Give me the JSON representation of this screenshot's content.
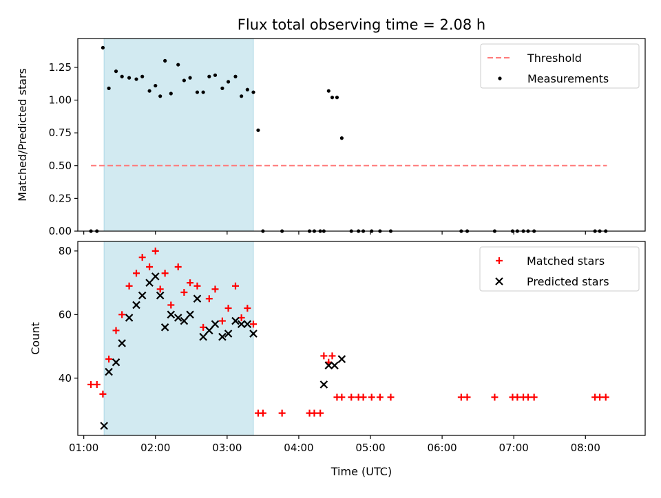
{
  "title": "Flux total observing time = 2.08 h",
  "colors": {
    "threshold": "#ff7a7a",
    "measurement": "#000000",
    "matched": "#ff0000",
    "predicted": "#000000",
    "shade": "#add8e6"
  },
  "chart_data": [
    {
      "type": "scatter",
      "ylabel": "Matched/Predicted stars",
      "xlim": [
        "00:55",
        "08:50"
      ],
      "ylim": [
        0,
        1.47
      ],
      "yticks": [
        "0.00",
        "0.25",
        "0.50",
        "0.75",
        "1.00",
        "1.25"
      ],
      "shaded_region": {
        "x": [
          "01:17",
          "03:22"
        ]
      },
      "threshold": {
        "name": "Threshold",
        "y": 0.5,
        "x": [
          "01:06",
          "08:18"
        ]
      },
      "legend_position": "top-right",
      "series": [
        {
          "name": "Measurements",
          "x": [
            "01:06",
            "01:11",
            "01:16",
            "01:21",
            "01:27",
            "01:32",
            "01:38",
            "01:44",
            "01:49",
            "01:55",
            "02:00",
            "02:04",
            "02:08",
            "02:13",
            "02:19",
            "02:24",
            "02:29",
            "02:35",
            "02:40",
            "02:45",
            "02:50",
            "02:56",
            "03:01",
            "03:07",
            "03:12",
            "03:17",
            "03:22",
            "03:26",
            "03:30",
            "03:46",
            "04:09",
            "04:13",
            "04:18",
            "04:21",
            "04:25",
            "04:28",
            "04:32",
            "04:36",
            "04:44",
            "04:50",
            "04:54",
            "05:01",
            "05:08",
            "05:17",
            "06:16",
            "06:21",
            "06:44",
            "06:59",
            "07:03",
            "07:08",
            "07:12",
            "07:17",
            "08:08",
            "08:12",
            "08:17"
          ],
          "y": [
            0,
            0,
            1.4,
            1.09,
            1.22,
            1.18,
            1.17,
            1.16,
            1.18,
            1.07,
            1.11,
            1.03,
            1.3,
            1.05,
            1.27,
            1.15,
            1.17,
            1.06,
            1.06,
            1.18,
            1.19,
            1.09,
            1.14,
            1.18,
            1.03,
            1.08,
            1.06,
            0.77,
            0,
            0,
            0,
            0,
            0,
            0,
            1.07,
            1.02,
            1.02,
            0.71,
            0,
            0,
            0,
            0,
            0,
            0,
            0,
            0,
            0,
            0,
            0,
            0,
            0,
            0,
            0,
            0,
            0
          ]
        }
      ]
    },
    {
      "type": "scatter",
      "xlabel": "Time (UTC)",
      "ylabel": "Count",
      "xlim": [
        "00:55",
        "08:50"
      ],
      "ylim": [
        22,
        83
      ],
      "yticks": [
        "40",
        "60",
        "80"
      ],
      "xticks": [
        "01:00",
        "02:00",
        "03:00",
        "04:00",
        "05:00",
        "06:00",
        "07:00",
        "08:00"
      ],
      "shaded_region": {
        "x": [
          "01:17",
          "03:22"
        ]
      },
      "legend_position": "top-right",
      "series": [
        {
          "name": "Matched stars",
          "x": [
            "01:06",
            "01:11",
            "01:16",
            "01:21",
            "01:27",
            "01:32",
            "01:38",
            "01:44",
            "01:49",
            "01:55",
            "02:00",
            "02:04",
            "02:08",
            "02:13",
            "02:19",
            "02:24",
            "02:29",
            "02:35",
            "02:40",
            "02:45",
            "02:50",
            "02:56",
            "03:01",
            "03:07",
            "03:12",
            "03:17",
            "03:22",
            "03:26",
            "03:30",
            "03:46",
            "04:09",
            "04:13",
            "04:18",
            "04:21",
            "04:25",
            "04:28",
            "04:32",
            "04:36",
            "04:44",
            "04:50",
            "04:54",
            "05:01",
            "05:08",
            "05:17",
            "06:16",
            "06:21",
            "06:44",
            "06:59",
            "07:03",
            "07:08",
            "07:12",
            "07:17",
            "08:08",
            "08:12",
            "08:17"
          ],
          "y": [
            38,
            38,
            35,
            46,
            55,
            60,
            69,
            73,
            78,
            75,
            80,
            68,
            73,
            63,
            75,
            67,
            70,
            69,
            56,
            65,
            68,
            58,
            62,
            69,
            59,
            62,
            57,
            29,
            29,
            29,
            29,
            29,
            29,
            47,
            45,
            47,
            34,
            34,
            34,
            34,
            34,
            34,
            34,
            34,
            34,
            34,
            34,
            34,
            34,
            34,
            34,
            34,
            34,
            34,
            34
          ]
        },
        {
          "name": "Predicted stars",
          "x": [
            "01:17",
            "01:21",
            "01:27",
            "01:32",
            "01:38",
            "01:44",
            "01:49",
            "01:55",
            "02:00",
            "02:04",
            "02:08",
            "02:13",
            "02:19",
            "02:24",
            "02:29",
            "02:35",
            "02:40",
            "02:45",
            "02:50",
            "02:56",
            "03:01",
            "03:07",
            "03:12",
            "03:17",
            "03:22",
            "04:21",
            "04:25",
            "04:30",
            "04:36"
          ],
          "y": [
            25,
            42,
            45,
            51,
            59,
            63,
            66,
            70,
            72,
            66,
            56,
            60,
            59,
            58,
            60,
            65,
            53,
            55,
            57,
            53,
            54,
            58,
            57,
            57,
            54,
            38,
            44,
            44,
            46
          ]
        }
      ]
    }
  ]
}
